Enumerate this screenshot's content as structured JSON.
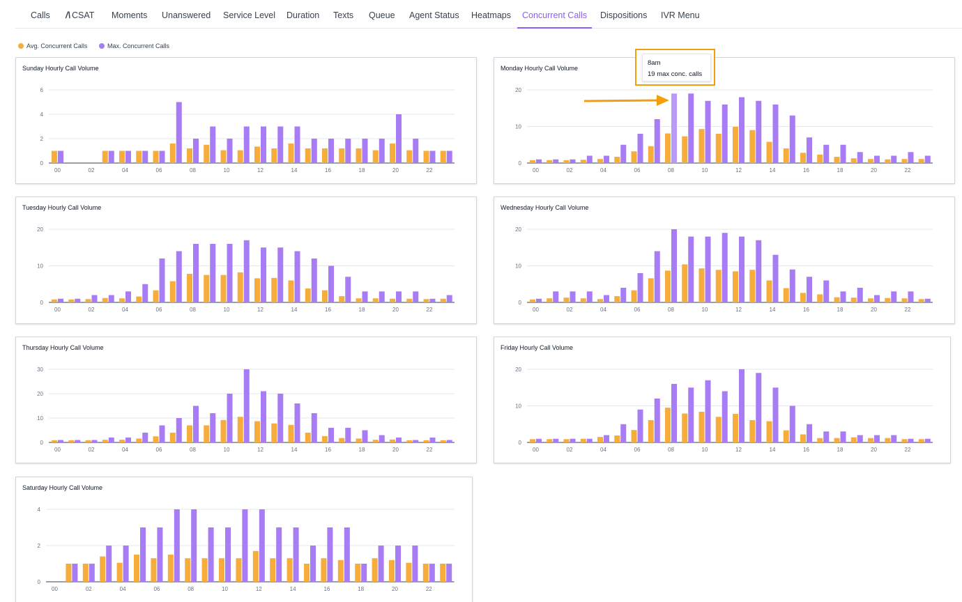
{
  "tabs": [
    {
      "label": "Calls",
      "name": "tab-calls"
    },
    {
      "label": "CSAT",
      "name": "tab-csat",
      "icon": "csat-logo-icon"
    },
    {
      "label": "Moments",
      "name": "tab-moments"
    },
    {
      "label": "Unanswered",
      "name": "tab-unanswered"
    },
    {
      "label": "Service Level",
      "name": "tab-service-level"
    },
    {
      "label": "Duration",
      "name": "tab-duration"
    },
    {
      "label": "Texts",
      "name": "tab-texts"
    },
    {
      "label": "Queue",
      "name": "tab-queue"
    },
    {
      "label": "Agent Status",
      "name": "tab-agent-status"
    },
    {
      "label": "Heatmaps",
      "name": "tab-heatmaps"
    },
    {
      "label": "Concurrent Calls",
      "name": "tab-concurrent-calls",
      "active": true
    },
    {
      "label": "Dispositions",
      "name": "tab-dispositions"
    },
    {
      "label": "IVR Menu",
      "name": "tab-ivr-menu"
    }
  ],
  "legend": {
    "avg_label": "Avg. Concurrent Calls",
    "max_label": "Max. Concurrent Calls",
    "avg_color": "#f6ad3c",
    "max_color": "#a87cf4"
  },
  "tooltip": {
    "title": "8am",
    "value_text": "19 max conc. calls",
    "highlight_color": "#f59e0b"
  },
  "chart_data": [
    {
      "type": "bar",
      "title": "Sunday Hourly Call Volume",
      "x": [
        "00",
        "01",
        "02",
        "03",
        "04",
        "05",
        "06",
        "07",
        "08",
        "09",
        "10",
        "11",
        "12",
        "13",
        "14",
        "15",
        "16",
        "17",
        "18",
        "19",
        "20",
        "21",
        "22",
        "23"
      ],
      "x_tick_labels": [
        "00",
        "02",
        "04",
        "06",
        "08",
        "10",
        "12",
        "14",
        "16",
        "18",
        "20",
        "22"
      ],
      "yticks": [
        0,
        2,
        4,
        6
      ],
      "ylim": [
        0,
        6
      ],
      "series": [
        {
          "name": "Avg. Concurrent Calls",
          "values": [
            1,
            0,
            0,
            1,
            1,
            1,
            1,
            1.6,
            1.2,
            1.5,
            1.05,
            1.05,
            1.35,
            1.2,
            1.6,
            1.2,
            1.2,
            1.2,
            1.2,
            1.05,
            1.6,
            1.05,
            1,
            1
          ]
        },
        {
          "name": "Max. Concurrent Calls",
          "values": [
            1,
            0,
            0,
            1,
            1,
            1,
            1,
            5,
            2,
            3,
            2,
            3,
            3,
            3,
            3,
            2,
            2,
            2,
            2,
            2,
            4,
            2,
            1,
            1
          ]
        }
      ]
    },
    {
      "type": "bar",
      "title": "Monday Hourly Call Volume",
      "x": [
        "00",
        "01",
        "02",
        "03",
        "04",
        "05",
        "06",
        "07",
        "08",
        "09",
        "10",
        "11",
        "12",
        "13",
        "14",
        "15",
        "16",
        "17",
        "18",
        "19",
        "20",
        "21",
        "22",
        "23"
      ],
      "x_tick_labels": [
        "00",
        "02",
        "04",
        "06",
        "08",
        "10",
        "12",
        "14",
        "16",
        "18",
        "20",
        "22"
      ],
      "yticks": [
        0,
        10,
        20
      ],
      "ylim": [
        0,
        20
      ],
      "series": [
        {
          "name": "Avg. Concurrent Calls",
          "values": [
            0.8,
            0.8,
            0.8,
            0.9,
            1.1,
            1.7,
            3.2,
            4.6,
            8.1,
            7.3,
            9.3,
            8,
            9.9,
            9,
            5.8,
            4,
            2.8,
            2.3,
            1.7,
            1.3,
            1.1,
            1,
            1.1,
            1.1
          ]
        },
        {
          "name": "Max. Concurrent Calls",
          "values": [
            1,
            1,
            1,
            2,
            2,
            5,
            8,
            12,
            19,
            19,
            17,
            16,
            18,
            17,
            16,
            13,
            7,
            5,
            5,
            3,
            2,
            2,
            3,
            2
          ]
        }
      ]
    },
    {
      "type": "bar",
      "title": "Tuesday Hourly Call Volume",
      "x": [
        "00",
        "01",
        "02",
        "03",
        "04",
        "05",
        "06",
        "07",
        "08",
        "09",
        "10",
        "11",
        "12",
        "13",
        "14",
        "15",
        "16",
        "17",
        "18",
        "19",
        "20",
        "21",
        "22",
        "23"
      ],
      "x_tick_labels": [
        "00",
        "02",
        "04",
        "06",
        "08",
        "10",
        "12",
        "14",
        "16",
        "18",
        "20",
        "22"
      ],
      "yticks": [
        0,
        10,
        20
      ],
      "ylim": [
        0,
        20
      ],
      "series": [
        {
          "name": "Avg. Concurrent Calls",
          "values": [
            0.8,
            0.8,
            0.9,
            1.2,
            1.1,
            1.6,
            3.3,
            5.8,
            7.8,
            7.5,
            7.5,
            8.2,
            6.6,
            6.7,
            6,
            3.8,
            3.3,
            1.7,
            1.1,
            1.1,
            1,
            1,
            0.9,
            1
          ]
        },
        {
          "name": "Max. Concurrent Calls",
          "values": [
            1,
            1,
            2,
            2,
            3,
            5,
            12,
            14,
            16,
            16,
            16,
            17,
            15,
            15,
            14,
            12,
            10,
            7,
            3,
            3,
            3,
            3,
            1,
            2
          ]
        }
      ]
    },
    {
      "type": "bar",
      "title": "Wednesday Hourly Call Volume",
      "x": [
        "00",
        "01",
        "02",
        "03",
        "04",
        "05",
        "06",
        "07",
        "08",
        "09",
        "10",
        "11",
        "12",
        "13",
        "14",
        "15",
        "16",
        "17",
        "18",
        "19",
        "20",
        "21",
        "22",
        "23"
      ],
      "x_tick_labels": [
        "00",
        "02",
        "04",
        "06",
        "08",
        "10",
        "12",
        "14",
        "16",
        "18",
        "20",
        "22"
      ],
      "yticks": [
        0,
        10,
        20
      ],
      "ylim": [
        0,
        20
      ],
      "series": [
        {
          "name": "Avg. Concurrent Calls",
          "values": [
            0.8,
            1.1,
            1.3,
            1.1,
            0.9,
            1.7,
            3.3,
            6.6,
            8.7,
            10.4,
            9.3,
            8.9,
            8.5,
            8.9,
            6,
            3.9,
            2.6,
            2.2,
            1.4,
            1.3,
            1.1,
            1.2,
            1.1,
            0.9
          ]
        },
        {
          "name": "Max. Concurrent Calls",
          "values": [
            1,
            3,
            3,
            3,
            2,
            4,
            8,
            14,
            20,
            18,
            18,
            19,
            18,
            17,
            13,
            9,
            7,
            6,
            3,
            4,
            2,
            3,
            3,
            1
          ]
        }
      ]
    },
    {
      "type": "bar",
      "title": "Thursday Hourly Call Volume",
      "x": [
        "00",
        "01",
        "02",
        "03",
        "04",
        "05",
        "06",
        "07",
        "08",
        "09",
        "10",
        "11",
        "12",
        "13",
        "14",
        "15",
        "16",
        "17",
        "18",
        "19",
        "20",
        "21",
        "22",
        "23"
      ],
      "x_tick_labels": [
        "00",
        "02",
        "04",
        "06",
        "08",
        "10",
        "12",
        "14",
        "16",
        "18",
        "20",
        "22"
      ],
      "yticks": [
        0,
        10,
        20,
        30
      ],
      "ylim": [
        0,
        30
      ],
      "series": [
        {
          "name": "Avg. Concurrent Calls",
          "values": [
            0.9,
            0.9,
            0.9,
            1.1,
            1.1,
            1.6,
            2.5,
            4,
            7,
            7,
            9.2,
            10.5,
            8.7,
            7.8,
            7.2,
            4,
            2.6,
            1.8,
            1.6,
            1.1,
            1.2,
            0.9,
            0.9,
            0.9
          ]
        },
        {
          "name": "Max. Concurrent Calls",
          "values": [
            1,
            1,
            1,
            2,
            2,
            4,
            7,
            10,
            15,
            12,
            20,
            30,
            21,
            20,
            16,
            12,
            6,
            6,
            5,
            3,
            2,
            1,
            2,
            1
          ]
        }
      ]
    },
    {
      "type": "bar",
      "title": "Friday Hourly Call Volume",
      "x": [
        "00",
        "01",
        "02",
        "03",
        "04",
        "05",
        "06",
        "07",
        "08",
        "09",
        "10",
        "11",
        "12",
        "13",
        "14",
        "15",
        "16",
        "17",
        "18",
        "19",
        "20",
        "21",
        "22",
        "23"
      ],
      "x_tick_labels": [
        "00",
        "02",
        "04",
        "06",
        "08",
        "10",
        "12",
        "14",
        "16",
        "18",
        "20",
        "22"
      ],
      "yticks": [
        0,
        10,
        20
      ],
      "ylim": [
        0,
        20
      ],
      "series": [
        {
          "name": "Avg. Concurrent Calls",
          "values": [
            0.9,
            0.9,
            0.9,
            1,
            1.5,
            1.9,
            3.4,
            6.1,
            9.5,
            7.9,
            8.4,
            7,
            7.8,
            6.1,
            5.8,
            3.3,
            2.2,
            1.2,
            1.2,
            1.4,
            1.2,
            1.2,
            0.9,
            0.9
          ]
        },
        {
          "name": "Max. Concurrent Calls",
          "values": [
            1,
            1,
            1,
            1,
            2,
            5,
            9,
            12,
            16,
            15,
            17,
            14,
            20,
            19,
            15,
            10,
            5,
            3,
            3,
            2,
            2,
            2,
            1,
            1
          ]
        }
      ]
    },
    {
      "type": "bar",
      "title": "Saturday Hourly Call Volume",
      "x": [
        "00",
        "01",
        "02",
        "03",
        "04",
        "05",
        "06",
        "07",
        "08",
        "09",
        "10",
        "11",
        "12",
        "13",
        "14",
        "15",
        "16",
        "17",
        "18",
        "19",
        "20",
        "21",
        "22",
        "23"
      ],
      "x_tick_labels": [
        "00",
        "02",
        "04",
        "06",
        "08",
        "10",
        "12",
        "14",
        "16",
        "18",
        "20",
        "22"
      ],
      "yticks": [
        0,
        2,
        4
      ],
      "ylim": [
        0,
        4
      ],
      "series": [
        {
          "name": "Avg. Concurrent Calls",
          "values": [
            0,
            1,
            1,
            1.4,
            1.05,
            1.5,
            1.3,
            1.5,
            1.3,
            1.3,
            1.3,
            1.3,
            1.7,
            1.3,
            1.3,
            1,
            1.3,
            1.2,
            1,
            1.3,
            1.2,
            1.05,
            1,
            1
          ]
        },
        {
          "name": "Max. Concurrent Calls",
          "values": [
            0,
            1,
            1,
            2,
            2,
            3,
            3,
            4,
            4,
            3,
            3,
            4,
            4,
            3,
            3,
            2,
            3,
            3,
            1,
            2,
            2,
            2,
            1,
            1
          ]
        }
      ]
    }
  ]
}
